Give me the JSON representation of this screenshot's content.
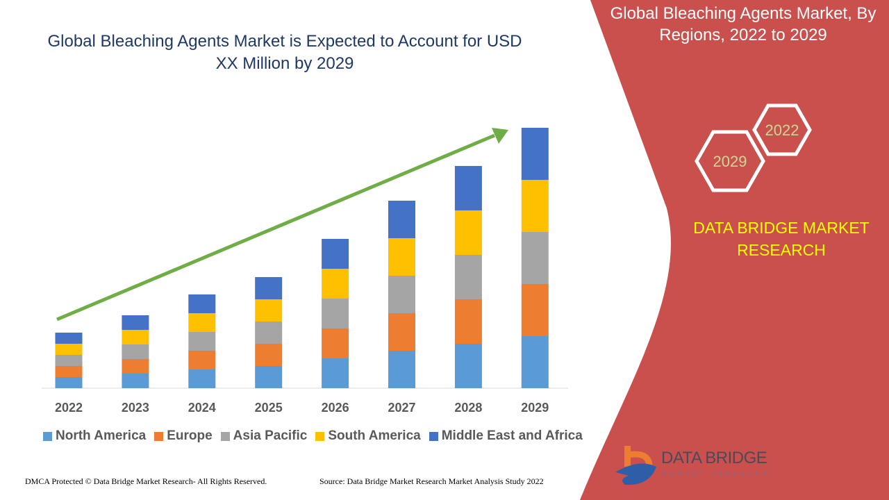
{
  "title": "Global Bleaching Agents Market is Expected to Account for USD XX Million by 2029",
  "side_panel": {
    "title": "Global Bleaching Agents Market, By Regions, 2022 to 2029",
    "hex_top": "2022",
    "hex_bottom": "2029",
    "brand": "DATA BRIDGE MARKET RESEARCH",
    "logo_name": "DATA BRIDGE",
    "logo_sub": "MARKET RESEARCH",
    "color": "#c9504c"
  },
  "footer": {
    "left": "DMCA Protected © Data Bridge Market Research- All Rights Reserved.",
    "right": "Source: Data Bridge Market Research Market Analysis Study 2022"
  },
  "chart_data": {
    "type": "bar",
    "stacked": true,
    "title": "Global Bleaching Agents Market is Expected to Account for USD XX Million by 2029",
    "xlabel": "",
    "ylabel": "",
    "ylim": [
      0,
      400
    ],
    "grid": false,
    "legend": "bottom",
    "trend_arrow_color": "#70ad47",
    "categories": [
      "2022",
      "2023",
      "2024",
      "2025",
      "2026",
      "2027",
      "2028",
      "2029"
    ],
    "series": [
      {
        "name": "North America",
        "color": "#5b9bd5",
        "values": [
          16,
          21,
          27,
          32,
          43,
          54,
          64,
          75
        ]
      },
      {
        "name": "Europe",
        "color": "#ed7d31",
        "values": [
          16,
          21,
          27,
          32,
          43,
          54,
          64,
          75
        ]
      },
      {
        "name": "Asia Pacific",
        "color": "#a5a5a5",
        "values": [
          16,
          21,
          27,
          32,
          43,
          54,
          64,
          75
        ]
      },
      {
        "name": "South America",
        "color": "#ffc000",
        "values": [
          16,
          21,
          27,
          32,
          43,
          54,
          64,
          75
        ]
      },
      {
        "name": "Middle East and Africa",
        "color": "#4472c4",
        "values": [
          16,
          21,
          27,
          32,
          43,
          54,
          64,
          75
        ]
      }
    ]
  }
}
